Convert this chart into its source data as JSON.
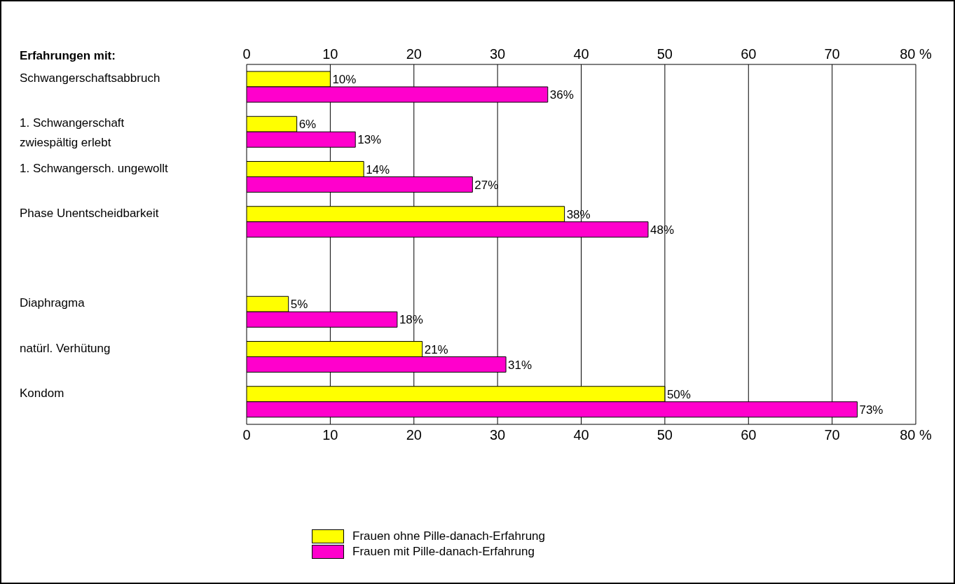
{
  "chart_data": {
    "type": "bar",
    "orientation": "horizontal",
    "ylabel": "Erfahrungen mit:",
    "categories": [
      "Schwangerschaftsabbruch",
      "1. Schwangerschaft\nzwiespältig erlebt",
      "1. Schwangersch. ungewollt",
      "Phase Unentscheidbarkeit",
      null,
      "Diaphragma",
      "natürl. Verhütung",
      "Kondom"
    ],
    "series": [
      {
        "name": "Frauen ohne Pille-danach-Erfahrung",
        "color": "#ffff00",
        "values": [
          10,
          6,
          14,
          38,
          null,
          5,
          21,
          50
        ],
        "value_labels": [
          "10%",
          "6%",
          "14%",
          "38%",
          null,
          "5%",
          "21%",
          "50%"
        ]
      },
      {
        "name": "Frauen mit Pille-danach-Erfahrung",
        "color": "#ff00cc",
        "values": [
          36,
          13,
          27,
          48,
          null,
          18,
          31,
          73
        ],
        "value_labels": [
          "36%",
          "13%",
          "27%",
          "48%",
          null,
          "18%",
          "31%",
          "73%"
        ]
      }
    ],
    "xlim": [
      0,
      80
    ],
    "xticks": [
      0,
      10,
      20,
      30,
      40,
      50,
      60,
      70,
      {
        "value": 80,
        "label": "80 %"
      }
    ],
    "x2lim": [
      0,
      80
    ],
    "x2ticks": [
      0,
      10,
      20,
      30,
      40,
      50,
      60,
      70,
      {
        "value": 80,
        "label": "80 %"
      }
    ],
    "grid": "x",
    "legend": "bottom"
  }
}
